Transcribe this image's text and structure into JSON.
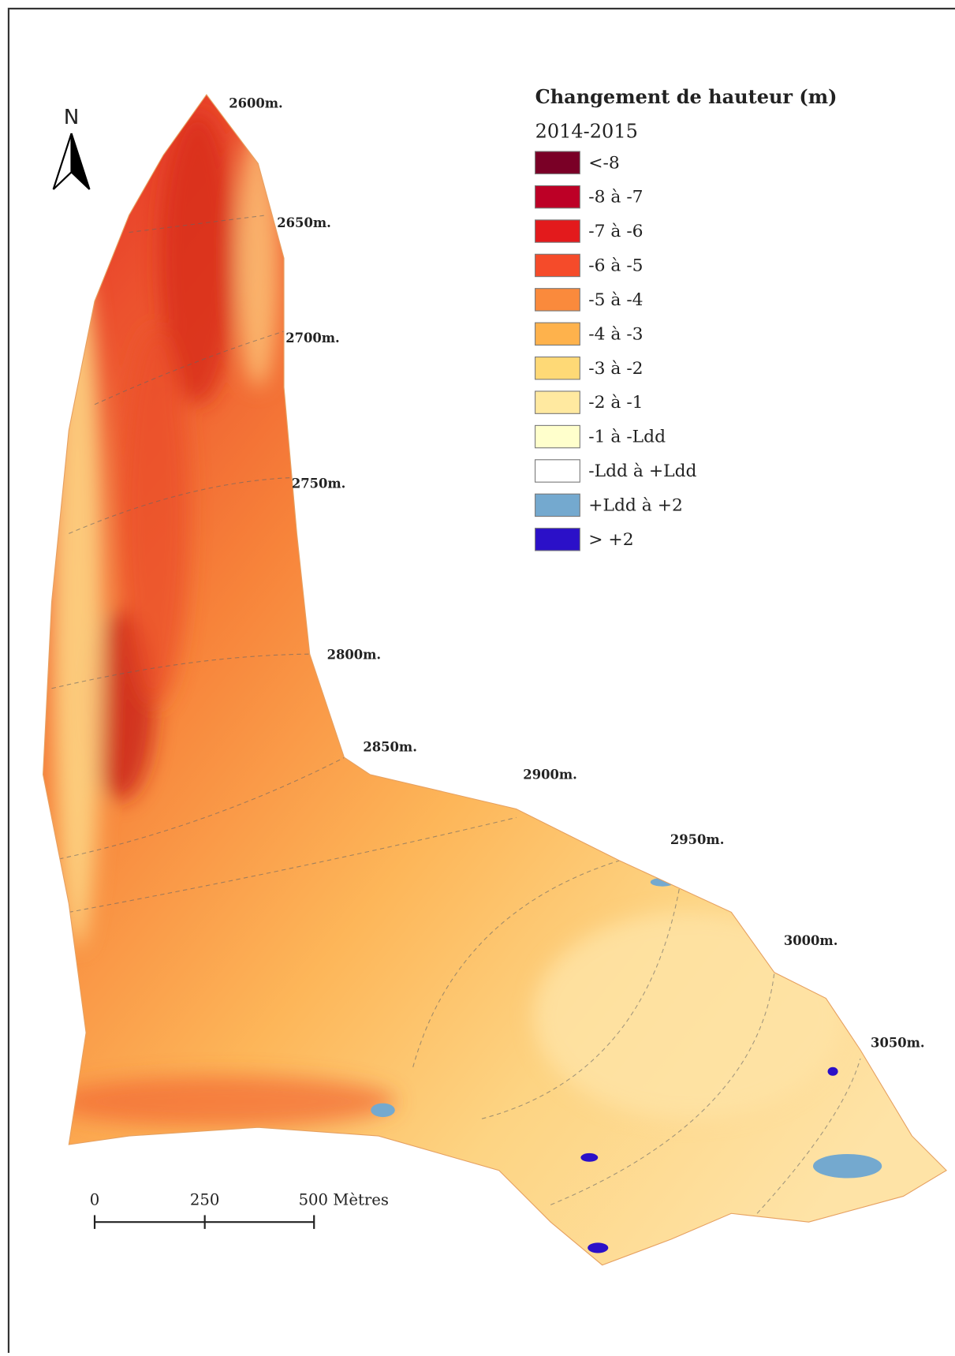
{
  "map": {
    "north": "N",
    "legend": {
      "title": "Changement de hauteur (m)",
      "subtitle": "2014-2015",
      "items": [
        {
          "label": "<-8",
          "color": "#7a0026"
        },
        {
          "label": "-8 à -7",
          "color": "#bd0026"
        },
        {
          "label": "-7 à -6",
          "color": "#e31a1c"
        },
        {
          "label": "-6 à -5",
          "color": "#f54b2a"
        },
        {
          "label": "-5 à -4",
          "color": "#fa8a3c"
        },
        {
          "label": "-4 à -3",
          "color": "#feb24c"
        },
        {
          "label": "-3 à -2",
          "color": "#fed976"
        },
        {
          "label": "-2 à -1",
          "color": "#ffe9a0"
        },
        {
          "label": "-1 à -Ldd",
          "color": "#ffffcc"
        },
        {
          "label": "-Ldd à +Ldd",
          "color": "#ffffff"
        },
        {
          "label": "+Ldd à +2",
          "color": "#74a9cf"
        },
        {
          "label": "> +2",
          "color": "#2b10c8"
        }
      ]
    },
    "contours": [
      "2600m.",
      "2650m.",
      "2700m.",
      "2750m.",
      "2800m.",
      "2850m.",
      "2900m.",
      "2950m.",
      "3000m.",
      "3050m."
    ],
    "scale_bar": {
      "labels": [
        "0",
        "250",
        "500 Mètres"
      ]
    }
  }
}
